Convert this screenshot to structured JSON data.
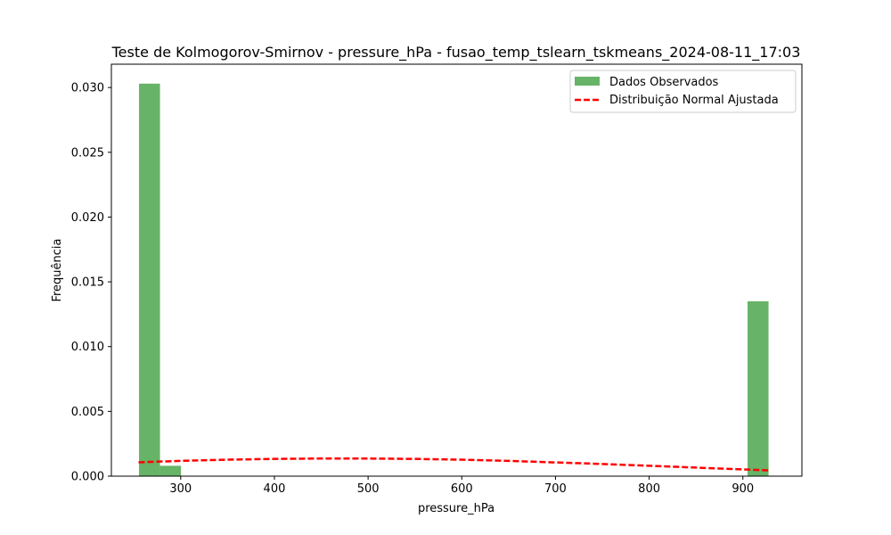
{
  "chart_data": {
    "type": "bar",
    "title": "Teste de Kolmogorov-Smirnov - pressure_hPa - fusao_temp_tslearn_tskmeans_2024-08-11_17:03",
    "xlabel": "pressure_hPa",
    "ylabel": "Frequência",
    "xlim": [
      226,
      963
    ],
    "ylim": [
      0,
      0.0318
    ],
    "xticks": [
      300,
      400,
      500,
      600,
      700,
      800,
      900
    ],
    "yticks": [
      0.0,
      0.005,
      0.01,
      0.015,
      0.02,
      0.025,
      0.03
    ],
    "ytick_labels": [
      "0.000",
      "0.005",
      "0.010",
      "0.015",
      "0.020",
      "0.025",
      "0.030"
    ],
    "grid": false,
    "legend_position": "top-right",
    "histogram": {
      "name": "Dados Observados",
      "color": "#4ca64c",
      "bins": [
        {
          "x0": 255.5,
          "x1": 277.9,
          "value": 0.0303
        },
        {
          "x0": 277.9,
          "x1": 300.3,
          "value": 0.0008
        },
        {
          "x0": 905.0,
          "x1": 927.4,
          "value": 0.0135
        }
      ]
    },
    "fit_line": {
      "name": "Distribuição Normal Ajustada",
      "color": "#ff0000",
      "x": [
        255,
        300,
        350,
        400,
        450,
        500,
        550,
        600,
        650,
        700,
        750,
        800,
        850,
        900,
        927
      ],
      "y": [
        0.00107,
        0.00118,
        0.00127,
        0.00133,
        0.00136,
        0.00136,
        0.00133,
        0.00127,
        0.00118,
        0.00106,
        0.00094,
        0.0008,
        0.00066,
        0.00052,
        0.00045
      ]
    }
  }
}
